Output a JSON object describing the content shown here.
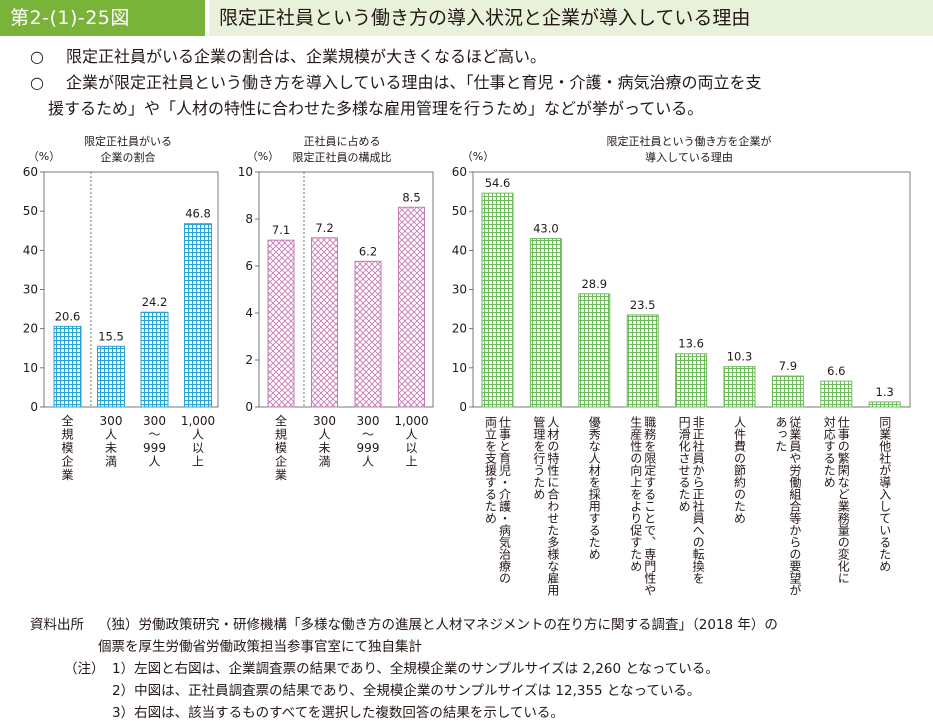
{
  "header": {
    "label": "第2-(1)-25図",
    "title": "限定正社員という働き方の導入状況と企業が導入している理由"
  },
  "summary": {
    "marker": "○",
    "line1": "限定正社員がいる企業の割合は、企業規模が大きくなるほど高い。",
    "line2a": "企業が限定正社員という働き方を導入している理由は、「仕事と育児・介護・病気治療の両立を支",
    "line2b": "援するため」や「人材の特性に合わせた多様な雇用管理を行うため」などが挙がっている。"
  },
  "colors": {
    "blue": "#29a3d6",
    "pink": "#c779b7",
    "green": "#6dbb5b",
    "header_green": "#7ab33a",
    "header_bg": "#e8f1da"
  },
  "chart_data": [
    {
      "type": "bar",
      "title": [
        "限定正社員がいる",
        "企業の割合"
      ],
      "ylabel": "（%）",
      "ylim": [
        0,
        60
      ],
      "yticks": [
        0,
        10,
        20,
        30,
        40,
        50,
        60
      ],
      "categories": [
        [
          "全",
          "規",
          "模",
          "企",
          "業"
        ],
        [
          "300",
          "人",
          "未",
          "満"
        ],
        [
          "300",
          "〜",
          "999",
          "人"
        ],
        [
          "1,000",
          "人",
          "以",
          "上"
        ]
      ],
      "values": [
        20.6,
        15.5,
        24.2,
        46.8
      ],
      "value_labels": [
        "20.6",
        "15.5",
        "24.2",
        "46.8"
      ],
      "separator_after": 0
    },
    {
      "type": "bar",
      "title": [
        "正社員に占める",
        "限定正社員の構成比"
      ],
      "ylabel": "（%）",
      "ylim": [
        0,
        10
      ],
      "yticks": [
        0,
        2,
        4,
        6,
        8,
        10
      ],
      "categories": [
        [
          "全",
          "規",
          "模",
          "企",
          "業"
        ],
        [
          "300",
          "人",
          "未",
          "満"
        ],
        [
          "300",
          "〜",
          "999",
          "人"
        ],
        [
          "1,000",
          "人",
          "以",
          "上"
        ]
      ],
      "values": [
        7.1,
        7.2,
        6.2,
        8.5
      ],
      "value_labels": [
        "7.1",
        "7.2",
        "6.2",
        "8.5"
      ],
      "separator_after": 0
    },
    {
      "type": "bar",
      "title": [
        "限定正社員という働き方を企業が",
        "導入している理由"
      ],
      "ylabel": "（%）",
      "ylim": [
        0,
        60
      ],
      "yticks": [
        0,
        10,
        20,
        30,
        40,
        50,
        60
      ],
      "categories": [
        [
          "仕事と育児・介護・病気治療の",
          "両立を支援するため"
        ],
        [
          "人材の特性に合わせた多様な雇用",
          "管理を行うため"
        ],
        [
          "優秀な人材を採用するため"
        ],
        [
          "職務を限定することで、専門性や",
          "生産性の向上をより促すため"
        ],
        [
          "非正社員から正社員への転換を",
          "円滑化させるため"
        ],
        [
          "人件費の節約のため"
        ],
        [
          "従業員や労働組合等からの要望が",
          "あった"
        ],
        [
          "仕事の繁閑など業務量の変化に",
          "対応するため"
        ],
        [
          "同業他社が導入しているため"
        ]
      ],
      "values": [
        54.6,
        43.0,
        28.9,
        23.5,
        13.6,
        10.3,
        7.9,
        6.6,
        1.3
      ],
      "value_labels": [
        "54.6",
        "43.0",
        "28.9",
        "23.5",
        "13.6",
        "10.3",
        "7.9",
        "6.6",
        "1.3"
      ]
    }
  ],
  "footer": {
    "source_label": "資料出所",
    "source_line1": "（独）労働政策研究・研修機構「多様な働き方の進展と人材マネジメントの在り方に関する調査」（2018 年）の",
    "source_line2": "個票を厚生労働省労働政策担当参事官室にて独自集計",
    "note_label": "（注）",
    "note1": "1）左図と右図は、企業調査票の結果であり、全規模企業のサンプルサイズは 2,260 となっている。",
    "note2": "2）中図は、正社員調査票の結果であり、全規模企業のサンプルサイズは 12,355 となっている。",
    "note3": "3）右図は、該当するものすべてを選択した複数回答の結果を示している。"
  }
}
